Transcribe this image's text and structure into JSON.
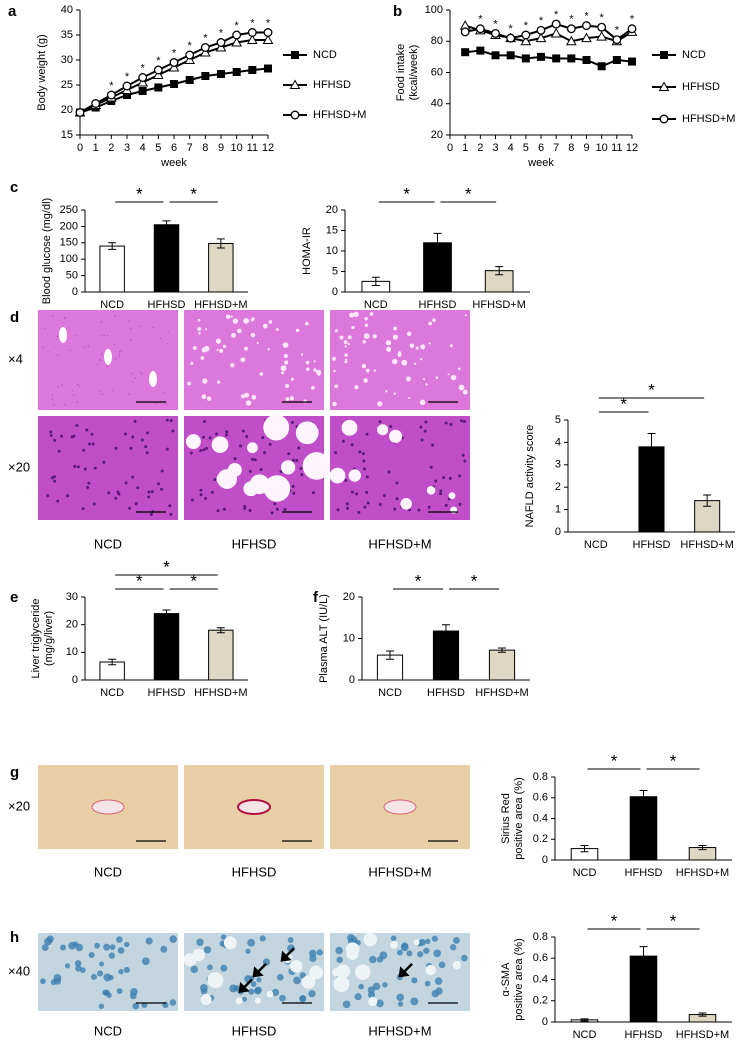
{
  "panels": [
    "a",
    "b",
    "c",
    "d",
    "e",
    "f",
    "g",
    "h"
  ],
  "images": {
    "groups": [
      "NCD",
      "HFHSD",
      "HFHSD+M"
    ],
    "rows": [
      {
        "magnifications": [
          "×4",
          "×20"
        ]
      },
      {
        "magnifications": [
          "×20"
        ]
      },
      {
        "magnifications": [
          "×40"
        ]
      }
    ]
  },
  "chart_data": [
    {
      "type": "line",
      "y_label": [
        "Body weight (g)"
      ],
      "x_label": "week",
      "x": [
        0,
        1,
        2,
        3,
        4,
        5,
        6,
        7,
        8,
        9,
        10,
        11,
        12
      ],
      "xlim": [
        0,
        12
      ],
      "xticks": [
        0,
        1,
        2,
        3,
        4,
        5,
        6,
        7,
        8,
        9,
        10,
        11,
        12
      ],
      "ylim": [
        15,
        40
      ],
      "yticks": [
        15,
        20,
        25,
        30,
        35,
        40
      ],
      "series": [
        {
          "name": "NCD",
          "color": "#000000",
          "marker": "square",
          "marker_fill": "#000000",
          "values": [
            19.5,
            20.5,
            21.8,
            23,
            23.8,
            24.5,
            25.2,
            26,
            26.8,
            27.2,
            27.6,
            28,
            28.3
          ]
        },
        {
          "name": "HFHSD",
          "color": "#000000",
          "marker": "triangle",
          "marker_fill": "#ffffff",
          "values": [
            19.5,
            21,
            22.5,
            24,
            25.5,
            27,
            28.5,
            30,
            31.5,
            32.5,
            33.5,
            34,
            34
          ]
        },
        {
          "name": "HFHSD+M",
          "color": "#000000",
          "marker": "circle",
          "marker_fill": "#ffffff",
          "values": [
            19.5,
            21.3,
            23,
            24.8,
            26.5,
            28,
            29.5,
            31,
            32.5,
            33.5,
            35,
            35.5,
            35.5
          ]
        }
      ],
      "significance": {
        "label": "*",
        "x": [
          2,
          3,
          4,
          5,
          6,
          7,
          8,
          9,
          10,
          11,
          12
        ]
      }
    },
    {
      "type": "line",
      "y_label": [
        "Food intake",
        "(kcal/week)"
      ],
      "x_label": "week",
      "x": [
        1,
        2,
        3,
        4,
        5,
        6,
        7,
        8,
        9,
        10,
        11,
        12
      ],
      "xlim": [
        0,
        12
      ],
      "xticks": [
        0,
        1,
        2,
        3,
        4,
        5,
        6,
        7,
        8,
        9,
        10,
        11,
        12
      ],
      "ylim": [
        20,
        100
      ],
      "yticks": [
        20,
        40,
        60,
        80,
        100
      ],
      "series": [
        {
          "name": "NCD",
          "color": "#000000",
          "marker": "square",
          "marker_fill": "#000000",
          "values": [
            73,
            74,
            71,
            71,
            69,
            70,
            69,
            69,
            68,
            64,
            68,
            67
          ]
        },
        {
          "name": "HFHSD",
          "color": "#000000",
          "marker": "triangle",
          "marker_fill": "#ffffff",
          "values": [
            90,
            87,
            84,
            82,
            80,
            82,
            85,
            80,
            82,
            83,
            80,
            86
          ]
        },
        {
          "name": "HFHSD+M",
          "color": "#000000",
          "marker": "circle",
          "marker_fill": "#ffffff",
          "values": [
            86,
            88,
            85,
            82,
            84,
            87,
            91,
            88,
            90,
            89,
            81,
            88
          ]
        }
      ],
      "significance": {
        "label": "*",
        "x": [
          2,
          3,
          4,
          5,
          6,
          7,
          8,
          9,
          10,
          11,
          12
        ]
      }
    },
    {
      "type": "bar",
      "y_label": [
        "Blood glucose (mg/dl)"
      ],
      "categories": [
        "NCD",
        "HFHSD",
        "HFHSD+M"
      ],
      "values": [
        140,
        205,
        148
      ],
      "errors": [
        10,
        12,
        14
      ],
      "colors": [
        "#ffffff",
        "#000000",
        "#ddd7c3"
      ],
      "ylim": [
        0,
        250
      ],
      "yticks": [
        0,
        50,
        100,
        150,
        200,
        250
      ],
      "comparisons": [
        {
          "from": "NCD",
          "to": "HFHSD",
          "label": "*"
        },
        {
          "from": "HFHSD",
          "to": "HFHSD+M",
          "label": "*"
        }
      ]
    },
    {
      "type": "bar",
      "y_label": [
        "HOMA-IR"
      ],
      "categories": [
        "NCD",
        "HFHSD",
        "HFHSD+M"
      ],
      "values": [
        2.6,
        12,
        5.2
      ],
      "errors": [
        1,
        2.3,
        1
      ],
      "colors": [
        "#ffffff",
        "#000000",
        "#ddd7c3"
      ],
      "ylim": [
        0,
        20
      ],
      "yticks": [
        0,
        5,
        10,
        15,
        20
      ],
      "comparisons": [
        {
          "from": "NCD",
          "to": "HFHSD",
          "label": "*"
        },
        {
          "from": "HFHSD",
          "to": "HFHSD+M",
          "label": "*"
        }
      ]
    },
    {
      "type": "bar",
      "y_label": [
        "NAFLD activity score"
      ],
      "categories": [
        "NCD",
        "HFHSD",
        "HFHSD+M"
      ],
      "values": [
        0,
        3.8,
        1.4
      ],
      "errors": [
        0,
        0.6,
        0.25
      ],
      "colors": [
        "#ffffff",
        "#000000",
        "#ddd7c3"
      ],
      "ylim": [
        0,
        5
      ],
      "yticks": [
        0,
        1,
        2,
        3,
        4,
        5
      ],
      "comparisons": [
        {
          "from": "NCD",
          "to": "HFHSD",
          "label": "*"
        },
        {
          "from": "NCD",
          "to": "HFHSD+M",
          "label": "*"
        }
      ]
    },
    {
      "type": "bar",
      "y_label": [
        "Liver triglyceride",
        "(mg/g/liver)"
      ],
      "categories": [
        "NCD",
        "HFHSD",
        "HFHSD+M"
      ],
      "values": [
        6.5,
        24,
        18
      ],
      "errors": [
        1,
        1.3,
        0.9
      ],
      "colors": [
        "#ffffff",
        "#000000",
        "#ddd7c3"
      ],
      "ylim": [
        0,
        30
      ],
      "yticks": [
        0,
        10,
        20,
        30
      ],
      "comparisons": [
        {
          "from": "NCD",
          "to": "HFHSD",
          "label": "*"
        },
        {
          "from": "HFHSD",
          "to": "HFHSD+M",
          "label": "*"
        },
        {
          "from": "NCD",
          "to": "HFHSD+M",
          "label": "*"
        }
      ]
    },
    {
      "type": "bar",
      "y_label": [
        "Plasma ALT (IU/L)"
      ],
      "categories": [
        "NCD",
        "HFHSD",
        "HFHSD+M"
      ],
      "values": [
        6,
        11.8,
        7.2
      ],
      "errors": [
        1,
        1.5,
        0.5
      ],
      "colors": [
        "#ffffff",
        "#000000",
        "#ddd7c3"
      ],
      "ylim": [
        0,
        20
      ],
      "yticks": [
        0,
        10,
        20
      ],
      "comparisons": [
        {
          "from": "NCD",
          "to": "HFHSD",
          "label": "*"
        },
        {
          "from": "HFHSD",
          "to": "HFHSD+M",
          "label": "*"
        }
      ]
    },
    {
      "type": "bar",
      "y_label": [
        "Sirius Red",
        "positive area (%)"
      ],
      "categories": [
        "NCD",
        "HFHSD",
        "HFHSD+M"
      ],
      "values": [
        0.11,
        0.61,
        0.12
      ],
      "errors": [
        0.03,
        0.06,
        0.02
      ],
      "colors": [
        "#ffffff",
        "#000000",
        "#ddd7c3"
      ],
      "ylim": [
        0,
        0.8
      ],
      "yticks": [
        0,
        0.2,
        0.4,
        0.6,
        0.8
      ],
      "comparisons": [
        {
          "from": "NCD",
          "to": "HFHSD",
          "label": "*"
        },
        {
          "from": "HFHSD",
          "to": "HFHSD+M",
          "label": "*"
        }
      ]
    },
    {
      "type": "bar",
      "y_label": [
        "α-SMA",
        "positive area (%)"
      ],
      "categories": [
        "NCD",
        "HFHSD",
        "HFHSD+M"
      ],
      "values": [
        0.02,
        0.62,
        0.07
      ],
      "errors": [
        0.01,
        0.09,
        0.015
      ],
      "colors": [
        "#ffffff",
        "#000000",
        "#ddd7c3"
      ],
      "ylim": [
        0,
        0.8
      ],
      "yticks": [
        0,
        0.2,
        0.4,
        0.6,
        0.8
      ],
      "comparisons": [
        {
          "from": "NCD",
          "to": "HFHSD",
          "label": "*"
        },
        {
          "from": "HFHSD",
          "to": "HFHSD+M",
          "label": "*"
        }
      ]
    }
  ]
}
